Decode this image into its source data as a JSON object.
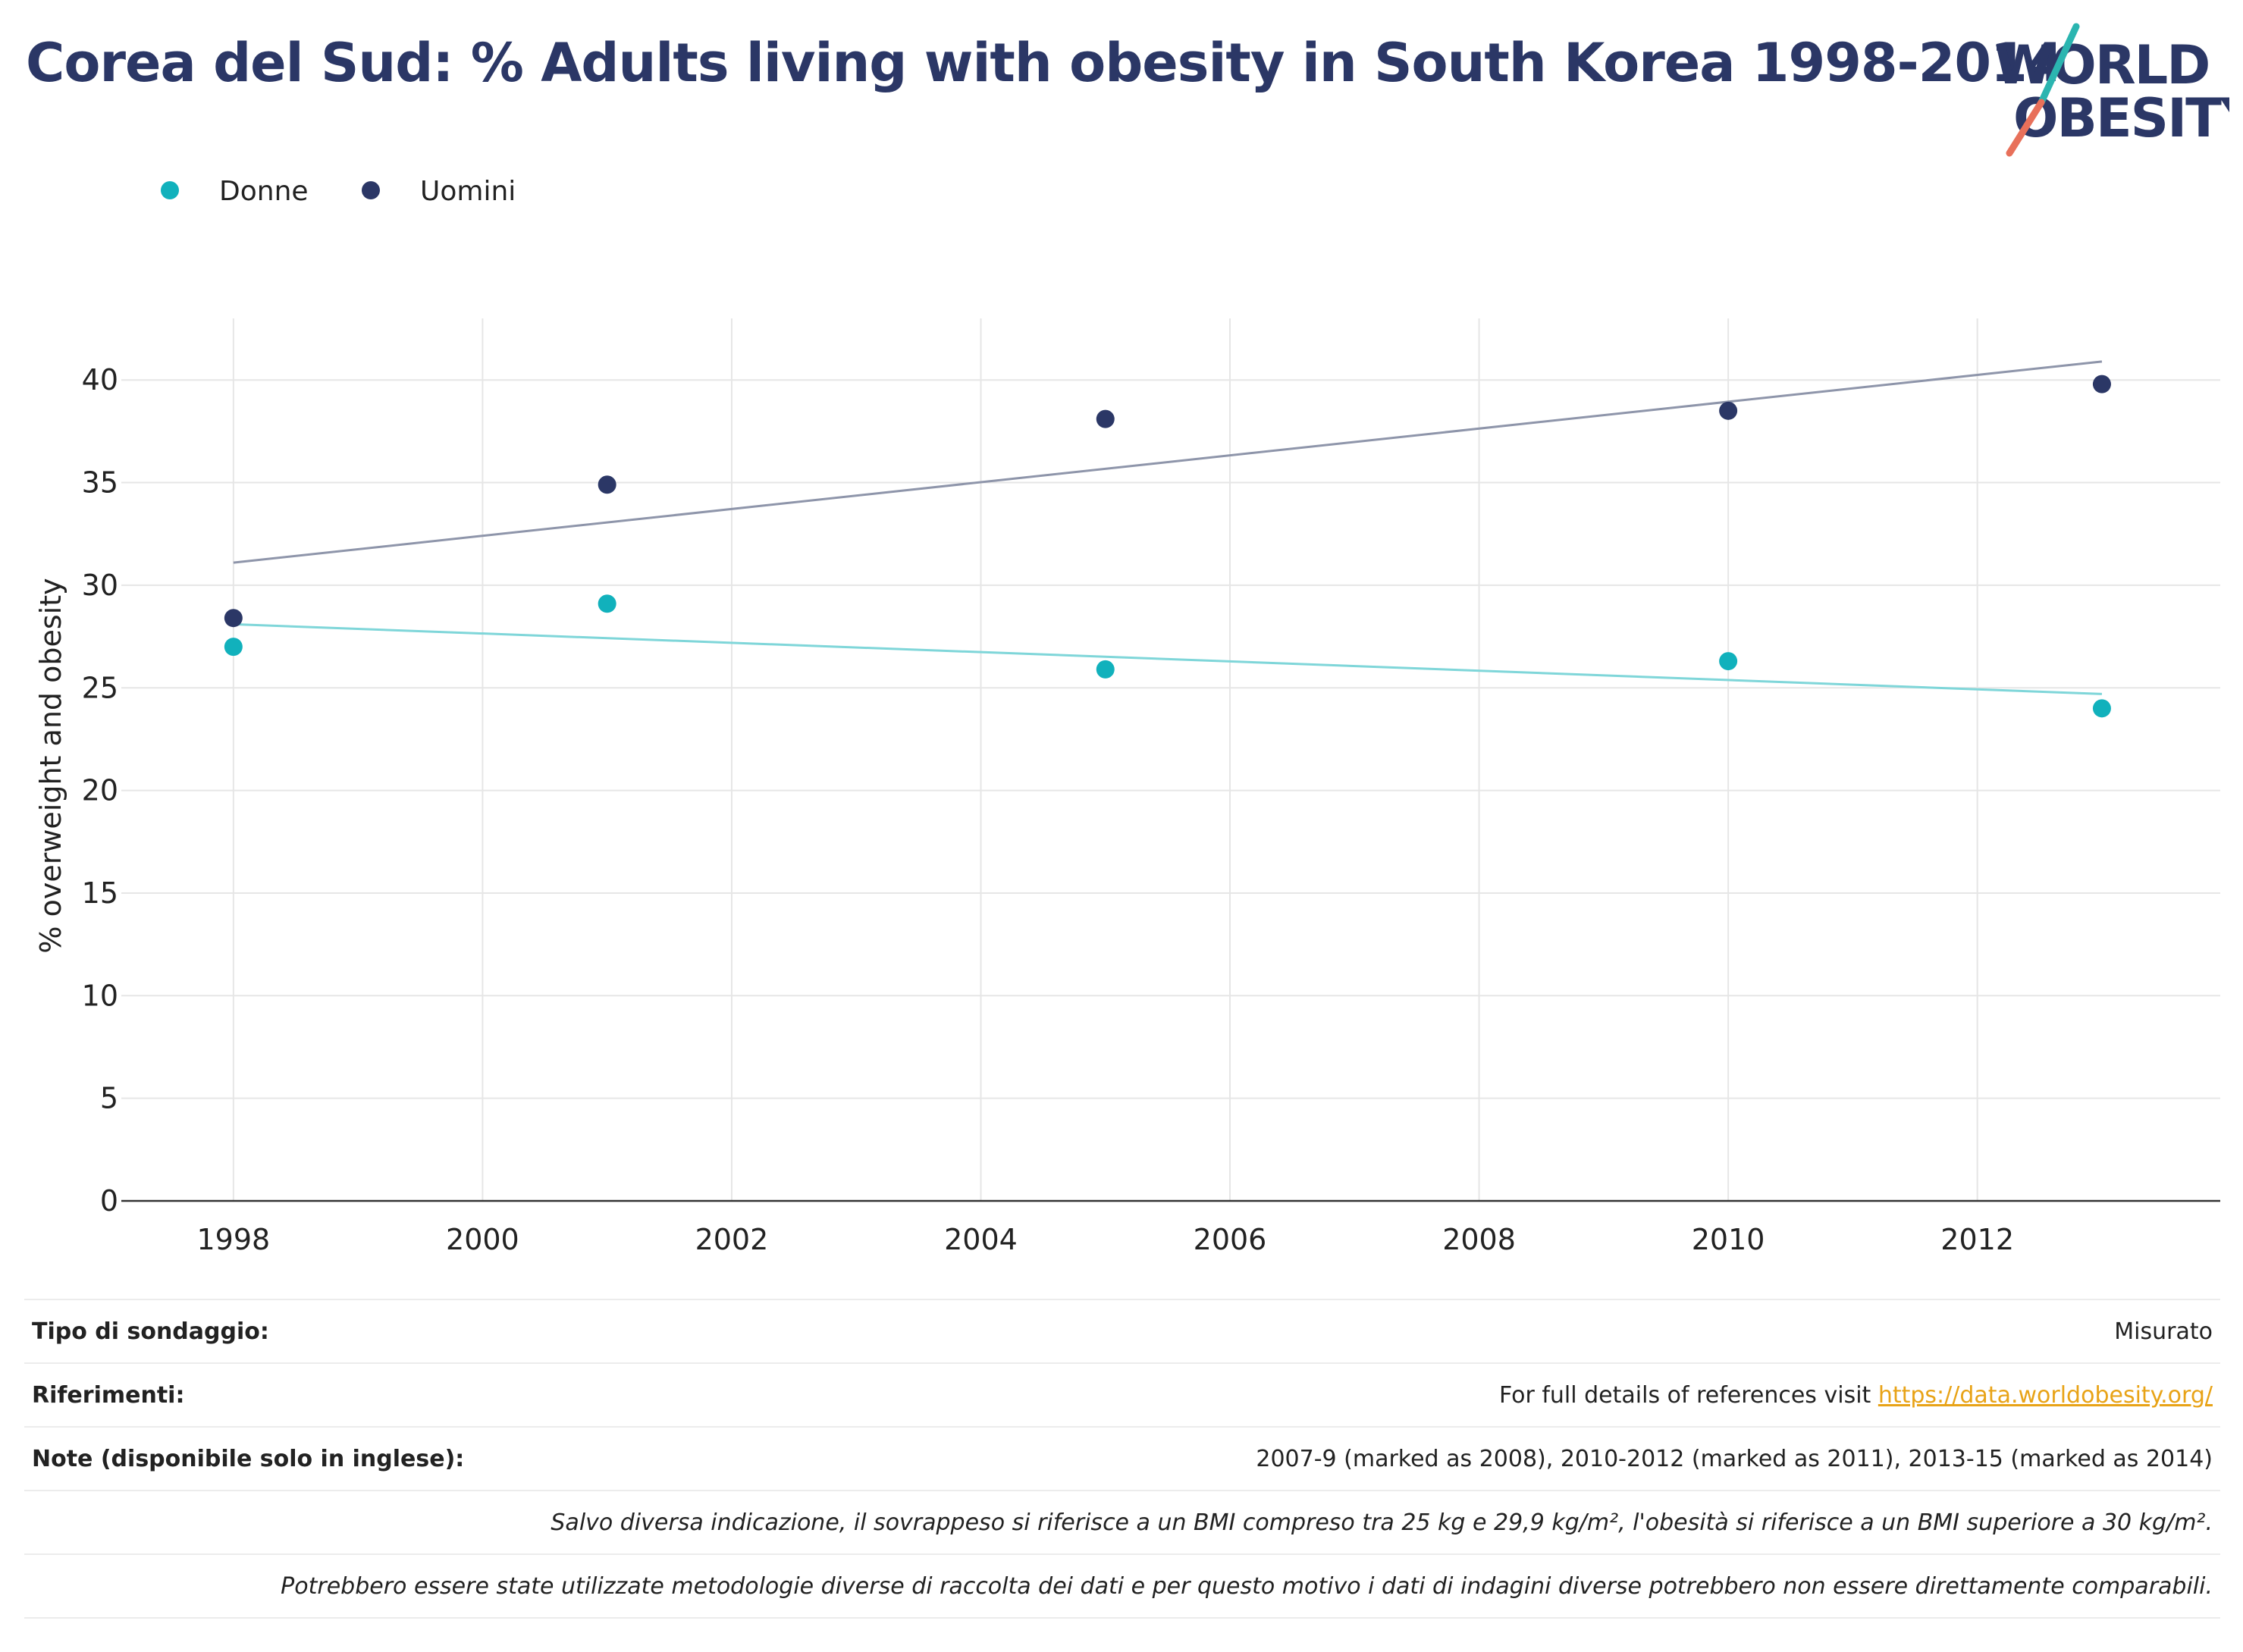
{
  "title": "Corea del Sud: % Adults living with obesity in South Korea 1998-2014",
  "logo": {
    "line1": "WORLD",
    "line2": "OBESITY"
  },
  "colors": {
    "donne": "#11b1bc",
    "uomini": "#2b3766",
    "trend_donne": "#7fd6d9",
    "trend_uomini": "#8e95aa",
    "link": "#e8a317",
    "title": "#2b3766"
  },
  "chart_data": {
    "type": "scatter",
    "title": "Corea del Sud: % Adults living with obesity in South Korea 1998-2014",
    "xlabel": "",
    "ylabel": "% overweight and obesity",
    "xlim": [
      1997.1,
      2013.95
    ],
    "ylim": [
      0,
      43
    ],
    "x_ticks": [
      1998,
      2000,
      2002,
      2004,
      2006,
      2008,
      2010,
      2012
    ],
    "y_ticks": [
      0,
      5,
      10,
      15,
      20,
      25,
      30,
      35,
      40
    ],
    "grid": true,
    "legend_position": "top-left",
    "series": [
      {
        "name": "Donne",
        "color": "#11b1bc",
        "x": [
          1998,
          2001,
          2005,
          2010,
          2013
        ],
        "y": [
          27.0,
          29.1,
          25.9,
          26.3,
          24.0
        ],
        "trendline": {
          "x": [
            1998,
            2013
          ],
          "y": [
            28.1,
            24.7
          ],
          "color": "#7fd6d9"
        }
      },
      {
        "name": "Uomini",
        "color": "#2b3766",
        "x": [
          1998,
          2001,
          2005,
          2010,
          2013
        ],
        "y": [
          28.4,
          34.9,
          38.1,
          38.5,
          39.8
        ],
        "trendline": {
          "x": [
            1998,
            2013
          ],
          "y": [
            31.1,
            40.9
          ],
          "color": "#8e95aa"
        }
      }
    ]
  },
  "info": {
    "survey_label": "Tipo di sondaggio:",
    "survey_value": "Misurato",
    "refs_label": "Riferimenti:",
    "refs_text": "For full details of references visit ",
    "refs_link": "https://data.worldobesity.org/",
    "notes_label": "Note (disponibile solo in inglese):",
    "notes_value": "2007-9 (marked as 2008), 2010-2012 (marked as 2011), 2013-15 (marked as 2014)",
    "bmi_note": "Salvo diversa indicazione, il sovrappeso si riferisce a un BMI compreso tra 25 kg e 29,9 kg/m², l'obesità si riferisce a un BMI superiore a 30 kg/m².",
    "method_note": "Potrebbero essere state utilizzate metodologie diverse di raccolta dei dati e per questo motivo i dati di indagini diverse potrebbero non essere direttamente comparabili."
  }
}
